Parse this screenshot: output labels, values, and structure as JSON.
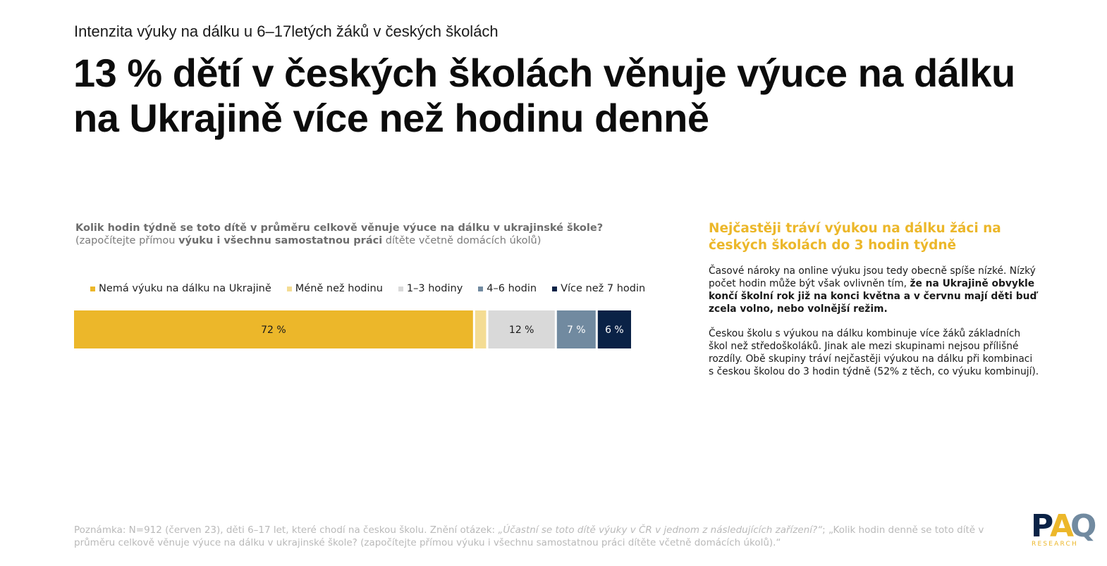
{
  "subtitle": "Intenzita výuky na dálku u 6–17letých žáků v českých školách",
  "headline": "13 % dětí v českých školách věnuje výuce na dálku na Ukrajině více než hodinu denně",
  "question": {
    "line1": "Kolik hodin týdně  se toto dítě v průměru celkově věnuje výuce na dálku v ukrajinské škole?",
    "line2_a": "(započítejte přímou ",
    "line2_b": "výuku i všechnu samostatnou práci",
    "line2_c": " dítěte včetně domácích úkolů)"
  },
  "chart_data": {
    "type": "bar",
    "orientation": "horizontal-stacked-100",
    "series": [
      {
        "name": "Nemá výuku na dálku na Ukrajině",
        "value": 72,
        "label": "72 %",
        "color": "#ecb72a",
        "label_color": "#1a1a1a"
      },
      {
        "name": "Méně než hodinu",
        "value": 2,
        "label": "",
        "color": "#f4dc93",
        "label_color": "#1a1a1a"
      },
      {
        "name": "1–3 hodiny",
        "value": 12,
        "label": "12 %",
        "color": "#d9d9d9",
        "label_color": "#1a1a1a"
      },
      {
        "name": "4–6 hodin",
        "value": 7,
        "label": "7 %",
        "color": "#718aa0",
        "label_color": "#ffffff"
      },
      {
        "name": "Více než 7 hodin",
        "value": 6,
        "label": "6 %",
        "color": "#0a2246",
        "label_color": "#ffffff"
      }
    ],
    "legend_position": "top-left"
  },
  "side": {
    "heading": "Nejčastěji tráví výukou na dálku žáci na českých školách do 3 hodin týdně",
    "p1_a": "Časové nároky na online výuku jsou tedy obecně spíše nízké. Nízký počet hodin může být však ovlivněn tím, ",
    "p1_b": "že na Ukrajině obvykle končí školní rok již na konci května a v červnu mají děti buď zcela volno, nebo volnější režim.",
    "p2": "Českou školu s výukou na dálku kombinuje více žáků základních škol než středoškoláků. Jinak ale mezi skupinami nejsou přílišné rozdíly. Obě skupiny tráví nejčastěji výukou na dálku při kombinaci s českou školou do 3 hodin týdně (52% z těch, co výuku kombinují)."
  },
  "note": {
    "a": "Poznámka: N=912 (červen 23), děti 6–17 let, které chodí na českou školu. Znění otázek: ",
    "b": "„Účastní se toto dítě výuky v ČR v jednom z následujících zařízení?“",
    "c": "; „Kolik hodin denně se toto dítě v průměru celkově věnuje výuce na dálku v ukrajinské škole? (započítejte přímou výuku i všechnu samostatnou práci dítěte včetně domácích úkolů).“"
  },
  "logo": {
    "mark": "PAQ",
    "tagline": "RESEARCH",
    "colors": {
      "p": "#0a2246",
      "a": "#ecb72a",
      "q": "#718aa0"
    }
  }
}
